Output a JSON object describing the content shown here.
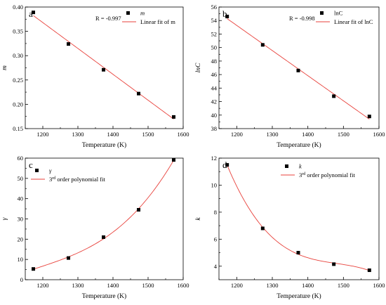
{
  "figure": {
    "colors": {
      "axis": "#000000",
      "fit_line": "#e8413b",
      "marker": "#000000"
    }
  },
  "chart_data": [
    {
      "panel": "a",
      "type": "scatter",
      "fit": "linear",
      "xlabel": "Temperature (K)",
      "ylabel": "m",
      "ylabel_italic": true,
      "xlim": [
        1150,
        1600
      ],
      "ylim": [
        0.15,
        0.4
      ],
      "xticks": [
        1200,
        1300,
        1400,
        1500,
        1600
      ],
      "yticks": [
        0.15,
        0.2,
        0.25,
        0.3,
        0.35,
        0.4
      ],
      "ytick_decimals": 2,
      "x": [
        1173,
        1273,
        1373,
        1473,
        1573
      ],
      "y": [
        0.389,
        0.324,
        0.271,
        0.222,
        0.174
      ],
      "annotation": "R = -0.997",
      "legend": {
        "position": "top-right",
        "marker_label": "m",
        "marker_italic": true,
        "line_label": "Linear fit of m"
      }
    },
    {
      "panel": "b",
      "type": "scatter",
      "fit": "linear",
      "xlabel": "Temperature (K)",
      "ylabel": "lnC",
      "ylabel_italic": true,
      "xlim": [
        1150,
        1600
      ],
      "ylim": [
        38,
        56
      ],
      "xticks": [
        1200,
        1300,
        1400,
        1500,
        1600
      ],
      "yticks": [
        38,
        40,
        42,
        44,
        46,
        48,
        50,
        52,
        54,
        56
      ],
      "ytick_decimals": 0,
      "x": [
        1173,
        1273,
        1373,
        1473,
        1573
      ],
      "y": [
        54.6,
        50.4,
        46.6,
        42.8,
        39.8
      ],
      "annotation": "R = -0.998",
      "legend": {
        "position": "top-right",
        "marker_label": "lnC",
        "marker_italic": false,
        "line_label": "Linear fit of lnC"
      }
    },
    {
      "panel": "c",
      "type": "scatter",
      "fit": "polynomial-3",
      "xlabel": "Temperature (K)",
      "ylabel": "γ",
      "ylabel_italic": true,
      "xlim": [
        1150,
        1600
      ],
      "ylim": [
        0,
        60
      ],
      "xticks": [
        1200,
        1300,
        1400,
        1500,
        1600
      ],
      "yticks": [
        0,
        10,
        20,
        30,
        40,
        50,
        60
      ],
      "ytick_decimals": 0,
      "x": [
        1173,
        1273,
        1373,
        1473,
        1573
      ],
      "y": [
        5.3,
        10.7,
        21.0,
        34.5,
        59.1
      ],
      "annotation": "",
      "legend": {
        "position": "top-left",
        "marker_label": "γ",
        "marker_italic": true,
        "line_label": "3",
        "line_label_sup": "rd",
        "line_label_rest": " order polynomial fit"
      }
    },
    {
      "panel": "d",
      "type": "scatter",
      "fit": "polynomial-3",
      "xlabel": "Temperature (K)",
      "ylabel": "k",
      "ylabel_italic": true,
      "xlim": [
        1150,
        1600
      ],
      "ylim": [
        3,
        12
      ],
      "xticks": [
        1200,
        1300,
        1400,
        1500,
        1600
      ],
      "yticks": [
        4,
        6,
        8,
        10,
        12
      ],
      "ytick_decimals": 0,
      "x": [
        1173,
        1273,
        1373,
        1473,
        1573
      ],
      "y": [
        11.5,
        6.8,
        5.0,
        4.15,
        3.7
      ],
      "annotation": "",
      "legend": {
        "position": "top-center",
        "marker_label": "k",
        "marker_italic": true,
        "line_label": "3",
        "line_label_sup": "rd",
        "line_label_rest": " order polynomial fit"
      }
    }
  ]
}
